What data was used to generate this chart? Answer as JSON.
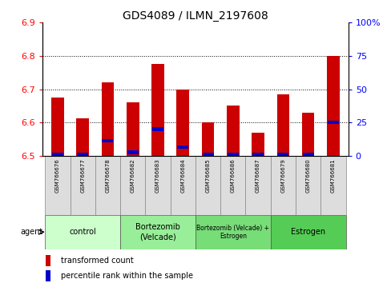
{
  "title": "GDS4089 / ILMN_2197608",
  "samples": [
    "GSM766676",
    "GSM766677",
    "GSM766678",
    "GSM766682",
    "GSM766683",
    "GSM766684",
    "GSM766685",
    "GSM766686",
    "GSM766687",
    "GSM766679",
    "GSM766680",
    "GSM766681"
  ],
  "red_values": [
    6.675,
    6.612,
    6.72,
    6.66,
    6.775,
    6.7,
    6.6,
    6.65,
    6.57,
    6.685,
    6.63,
    6.8
  ],
  "blue_values": [
    6.505,
    6.505,
    6.545,
    6.51,
    6.58,
    6.525,
    6.503,
    6.503,
    6.503,
    6.503,
    6.505,
    6.6
  ],
  "ylim_left": [
    6.5,
    6.9
  ],
  "ylim_right": [
    0,
    100
  ],
  "yticks_left": [
    6.5,
    6.6,
    6.7,
    6.8,
    6.9
  ],
  "yticks_right": [
    0,
    25,
    50,
    75,
    100
  ],
  "ytick_labels_right": [
    "0",
    "25",
    "50",
    "75",
    "100%"
  ],
  "groups": [
    {
      "label": "control",
      "start": 0,
      "end": 3
    },
    {
      "label": "Bortezomib\n(Velcade)",
      "start": 3,
      "end": 6
    },
    {
      "label": "Bortezomib (Velcade) +\nEstrogen",
      "start": 6,
      "end": 9
    },
    {
      "label": "Estrogen",
      "start": 9,
      "end": 12
    }
  ],
  "group_colors": [
    "#ccffcc",
    "#99ee99",
    "#77dd77",
    "#55cc55"
  ],
  "bar_color": "#cc0000",
  "blue_color": "#0000cc",
  "bar_width": 0.5,
  "baseline": 6.5,
  "legend_red": "transformed count",
  "legend_blue": "percentile rank within the sample",
  "agent_label": "agent"
}
